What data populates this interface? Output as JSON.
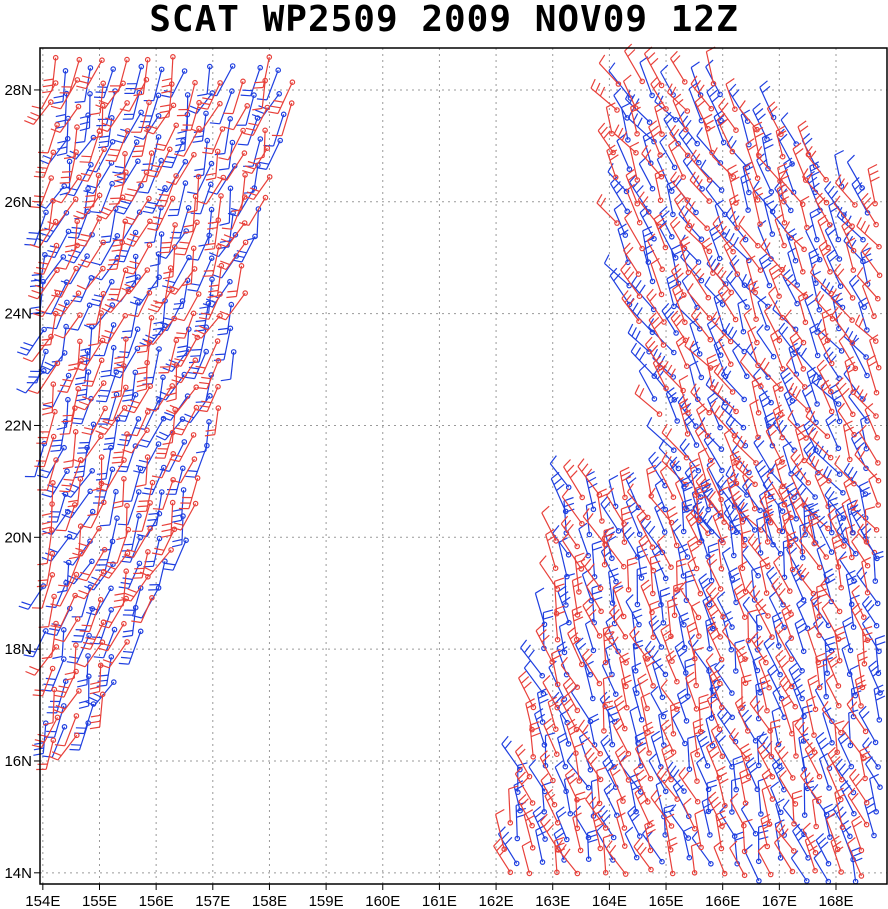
{
  "title": "SCAT WP2509 2009 NOV09 12Z",
  "colors": {
    "blue": "#1f3fe0",
    "red": "#e8403a",
    "grid": "#9a9a9a",
    "frame": "#000000"
  },
  "map": {
    "lon_range": [
      153.95,
      168.9
    ],
    "lat_range": [
      13.8,
      28.75
    ],
    "lat_ticks": [
      {
        "value": 14,
        "label": "14N"
      },
      {
        "value": 16,
        "label": "16N"
      },
      {
        "value": 18,
        "label": "18N"
      },
      {
        "value": 20,
        "label": "20N"
      },
      {
        "value": 22,
        "label": "22N"
      },
      {
        "value": 24,
        "label": "24N"
      },
      {
        "value": 26,
        "label": "26N"
      },
      {
        "value": 28,
        "label": "28N"
      }
    ],
    "lon_ticks": [
      {
        "value": 154,
        "label": "154E"
      },
      {
        "value": 155,
        "label": "155E"
      },
      {
        "value": 156,
        "label": "156E"
      },
      {
        "value": 157,
        "label": "157E"
      },
      {
        "value": 158,
        "label": "158E"
      },
      {
        "value": 159,
        "label": "159E"
      },
      {
        "value": 160,
        "label": "160E"
      },
      {
        "value": 161,
        "label": "161E"
      },
      {
        "value": 162,
        "label": "162E"
      },
      {
        "value": 163,
        "label": "163E"
      },
      {
        "value": 164,
        "label": "164E"
      },
      {
        "value": 165,
        "label": "165E"
      },
      {
        "value": 166,
        "label": "166E"
      },
      {
        "value": 167,
        "label": "167E"
      },
      {
        "value": 168,
        "label": "168E"
      }
    ],
    "swaths": [
      {
        "name": "west-swath",
        "polygon": [
          [
            154.2,
            28.6
          ],
          [
            158.6,
            28.6
          ],
          [
            156.6,
            20.0
          ],
          [
            154.7,
            16.2
          ],
          [
            154.0,
            16.2
          ],
          [
            154.0,
            26.0
          ]
        ],
        "direction_deg": 200,
        "step": 0.42
      },
      {
        "name": "east-swath-upper",
        "polygon": [
          [
            163.9,
            28.2
          ],
          [
            166.0,
            28.2
          ],
          [
            168.9,
            26.0
          ],
          [
            168.9,
            19.5
          ],
          [
            165.5,
            19.8
          ],
          [
            164.2,
            24.5
          ]
        ],
        "direction_deg": 330,
        "step": 0.42
      },
      {
        "name": "east-swath-lower",
        "polygon": [
          [
            162.0,
            13.8
          ],
          [
            168.6,
            13.8
          ],
          [
            168.9,
            16.5
          ],
          [
            168.9,
            20.0
          ],
          [
            165.0,
            21.0
          ],
          [
            163.2,
            20.9
          ]
        ],
        "direction_deg": 340,
        "step": 0.42
      }
    ]
  }
}
